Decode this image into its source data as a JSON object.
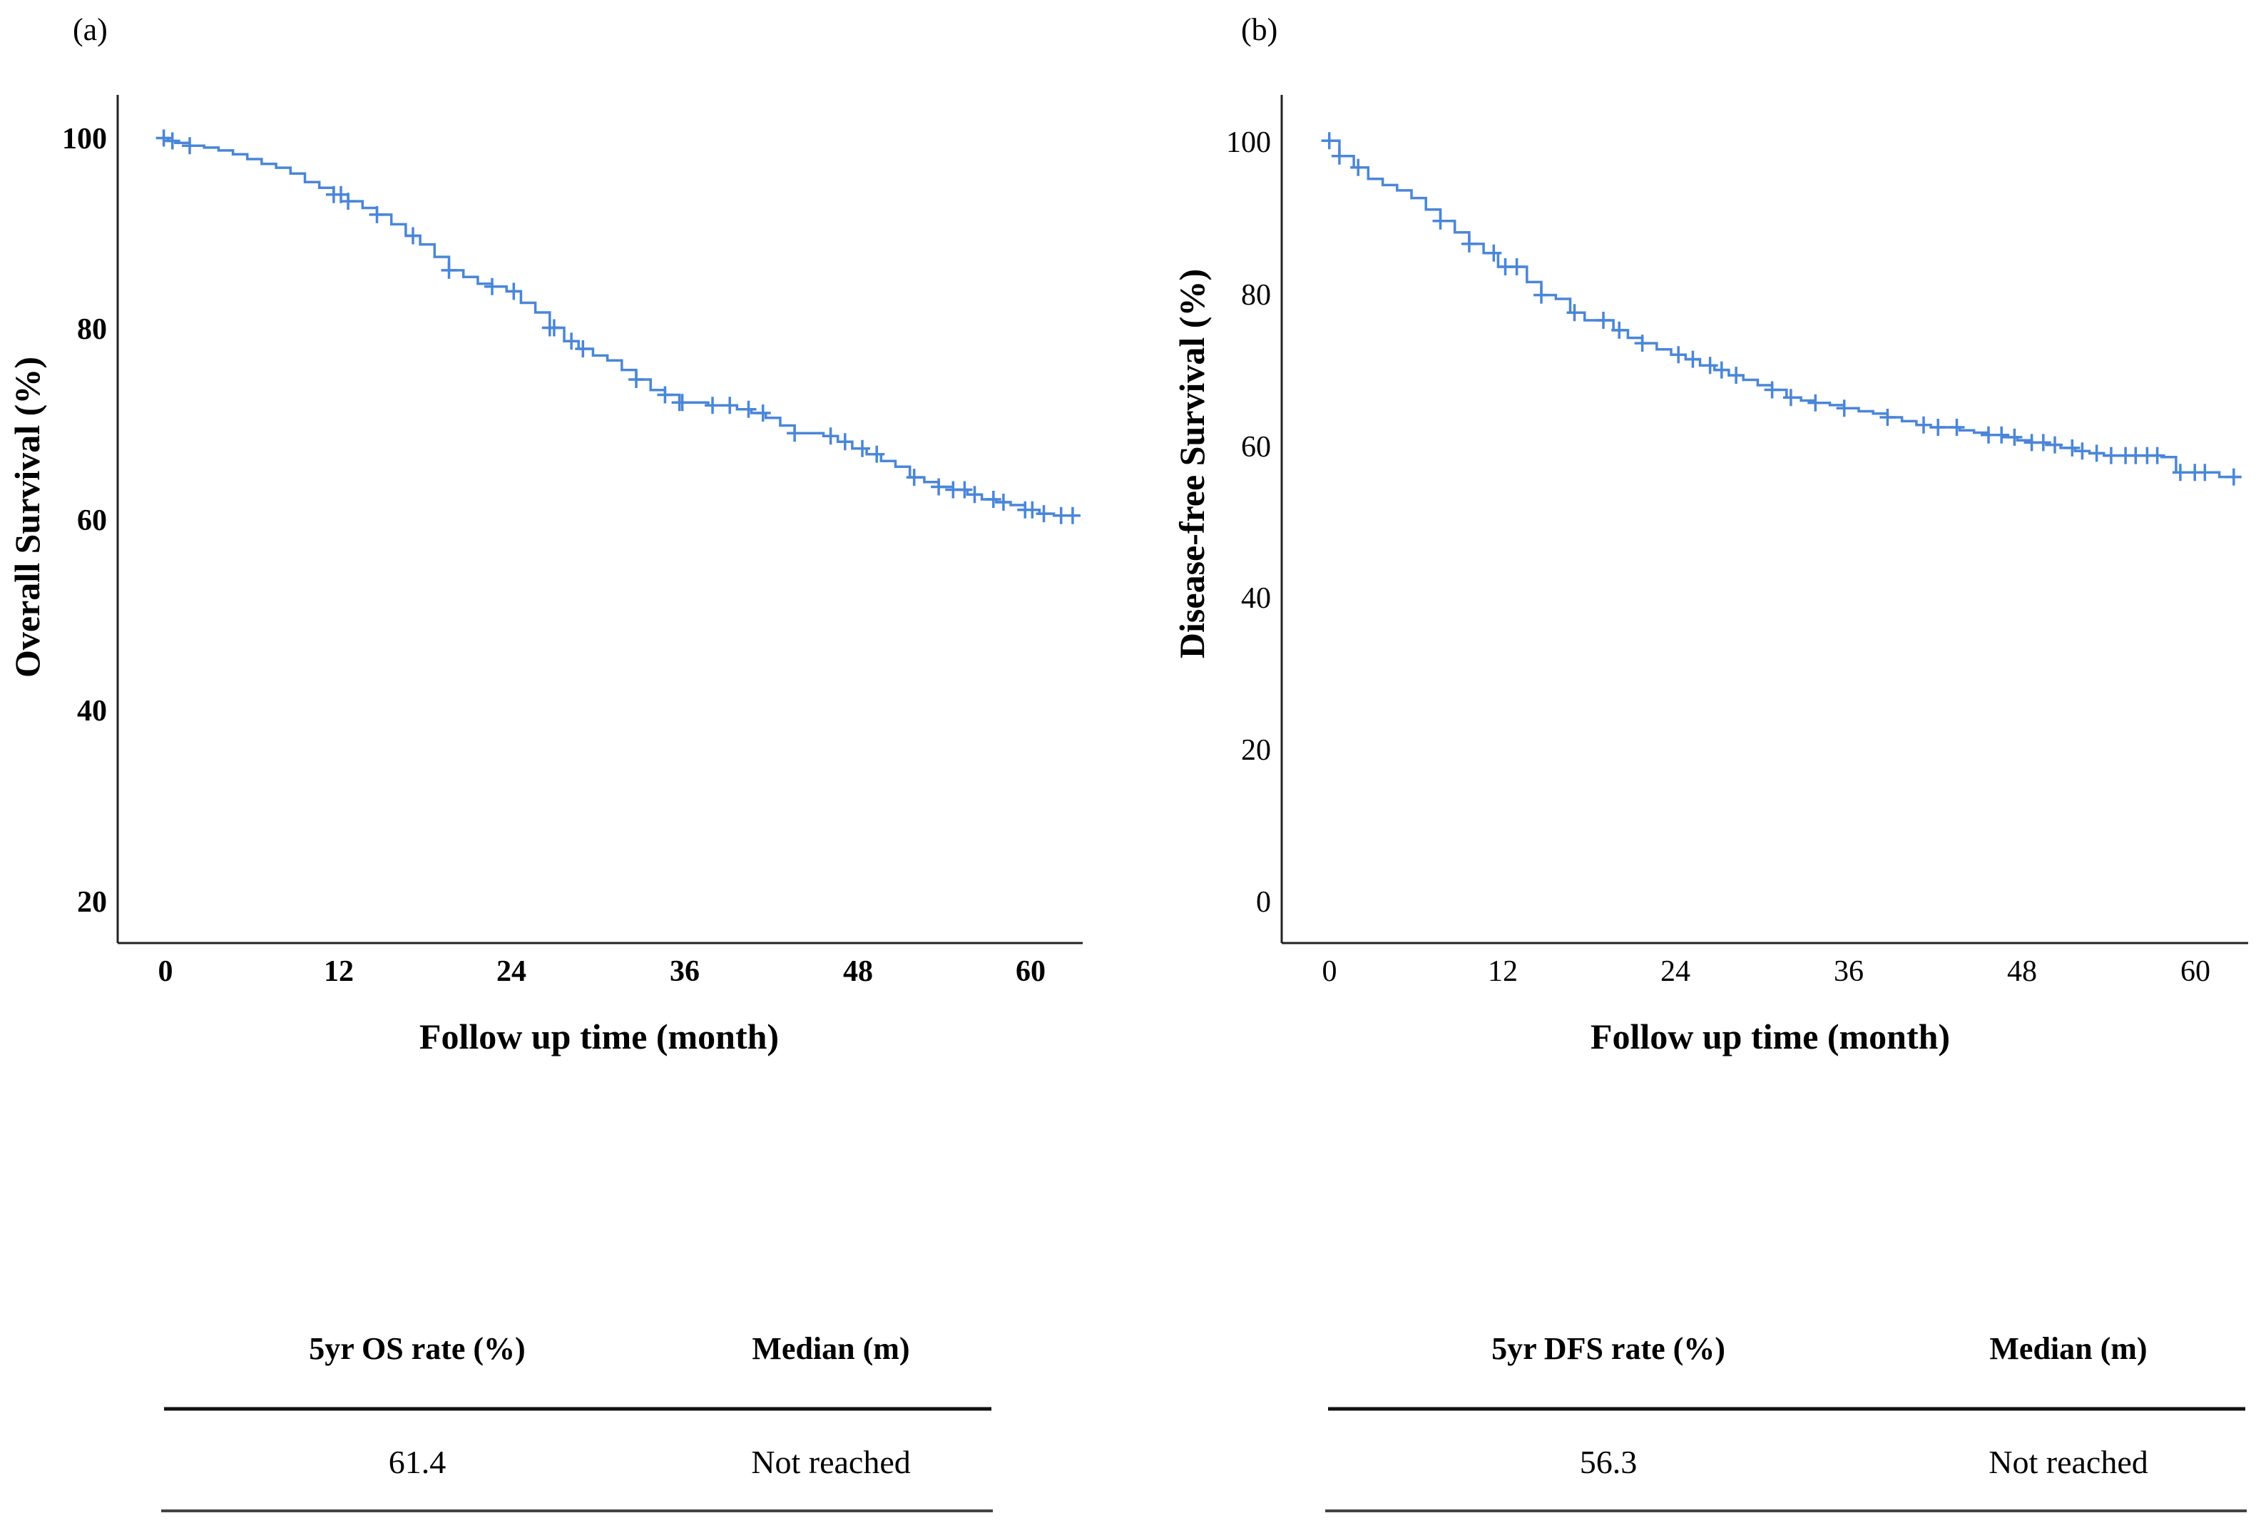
{
  "chart_data": [
    {
      "panel": "(a)",
      "type": "line",
      "subtype": "kaplan-meier step curve with censor marks",
      "xlabel": "Follow up time (month)",
      "ylabel": "Overall Survival (%)",
      "xticks": [
        "0",
        "12",
        "24",
        "36",
        "48",
        "60"
      ],
      "yticks": [
        "20",
        "40",
        "60",
        "80",
        "100"
      ],
      "xlim": [
        -3,
        64
      ],
      "ylim": [
        16,
        104.5
      ],
      "grid": false,
      "color": "#4a86d8",
      "steps": [
        [
          0,
          100
        ],
        [
          0.5,
          99.7
        ],
        [
          1,
          99.5
        ],
        [
          2,
          99.2
        ],
        [
          3,
          99
        ],
        [
          4,
          98.7
        ],
        [
          5,
          98.3
        ],
        [
          6,
          97.8
        ],
        [
          7,
          97.3
        ],
        [
          8,
          96.9
        ],
        [
          9,
          96.3
        ],
        [
          10,
          95.4
        ],
        [
          11,
          94.8
        ],
        [
          12,
          94.1
        ],
        [
          13,
          93.4
        ],
        [
          14,
          92.7
        ],
        [
          15,
          92
        ],
        [
          16,
          91
        ],
        [
          17,
          89.8
        ],
        [
          18,
          88.9
        ],
        [
          19,
          87.6
        ],
        [
          20,
          86.2
        ],
        [
          21,
          85.5
        ],
        [
          22,
          84.8
        ],
        [
          23,
          84.5
        ],
        [
          24,
          84
        ],
        [
          25,
          82.8
        ],
        [
          26,
          81.8
        ],
        [
          27,
          80.2
        ],
        [
          28,
          78.8
        ],
        [
          29,
          78
        ],
        [
          30,
          77.3
        ],
        [
          31,
          76.8
        ],
        [
          32,
          75.8
        ],
        [
          33,
          74.8
        ],
        [
          34,
          73.7
        ],
        [
          35,
          73.2
        ],
        [
          36,
          72.4
        ],
        [
          38,
          72.1
        ],
        [
          40,
          71.7
        ],
        [
          41,
          71.3
        ],
        [
          42,
          70.8
        ],
        [
          43,
          70
        ],
        [
          44,
          69.2
        ],
        [
          46,
          68.9
        ],
        [
          47,
          68.3
        ],
        [
          48,
          67.6
        ],
        [
          49,
          67
        ],
        [
          50,
          66.3
        ],
        [
          51,
          65.7
        ],
        [
          52,
          64.6
        ],
        [
          53,
          64.1
        ],
        [
          54,
          63.6
        ],
        [
          55,
          63.3
        ],
        [
          56,
          62.8
        ],
        [
          57,
          62.3
        ],
        [
          58,
          62
        ],
        [
          59,
          61.7
        ],
        [
          60,
          61.2
        ],
        [
          61,
          60.8
        ],
        [
          62,
          60.6
        ],
        [
          63.5,
          60.6
        ]
      ],
      "censor_times": [
        0.2,
        0.8,
        2,
        12,
        12.5,
        13,
        15,
        17.5,
        20,
        23,
        24.5,
        27,
        27.3,
        28.5,
        29.3,
        33,
        35,
        36,
        36.2,
        38.3,
        39.5,
        40.8,
        41.8,
        44,
        46.5,
        47.5,
        48.7,
        49.7,
        52.3,
        54,
        55,
        55.8,
        56.5,
        57.8,
        58.5,
        60,
        60.5,
        61.3,
        62.5,
        63.3
      ],
      "table": {
        "headers": [
          "5yr OS rate (%)",
          "Median (m)"
        ],
        "values": [
          "61.4",
          "Not reached"
        ]
      }
    },
    {
      "panel": "(b)",
      "type": "line",
      "subtype": "kaplan-meier step curve with censor marks",
      "xlabel": "Follow up time (month)",
      "ylabel": "Disease-free Survival (%)",
      "xticks": [
        "0",
        "12",
        "24",
        "36",
        "48",
        "60"
      ],
      "yticks": [
        "0",
        "20",
        "40",
        "60",
        "80",
        "100"
      ],
      "xlim": [
        -3,
        64
      ],
      "ylim": [
        -5,
        106
      ],
      "grid": false,
      "color": "#4a86d8",
      "steps": [
        [
          0,
          100
        ],
        [
          1,
          98
        ],
        [
          2,
          96.5
        ],
        [
          3,
          95
        ],
        [
          4,
          94.2
        ],
        [
          5,
          93.5
        ],
        [
          6,
          92.5
        ],
        [
          7,
          91
        ],
        [
          8,
          89.5
        ],
        [
          9,
          88
        ],
        [
          10,
          86.5
        ],
        [
          11,
          85.3
        ],
        [
          12,
          83.5
        ],
        [
          14,
          81.5
        ],
        [
          15,
          79.8
        ],
        [
          16,
          79.3
        ],
        [
          17,
          77.5
        ],
        [
          18,
          76.5
        ],
        [
          20,
          75.2
        ],
        [
          21,
          74.2
        ],
        [
          22,
          73.5
        ],
        [
          23,
          72.7
        ],
        [
          24,
          72
        ],
        [
          25,
          71.4
        ],
        [
          26,
          70.6
        ],
        [
          27,
          70
        ],
        [
          28,
          69.3
        ],
        [
          29,
          68.7
        ],
        [
          30,
          68
        ],
        [
          31,
          67.4
        ],
        [
          32,
          66.4
        ],
        [
          33,
          66
        ],
        [
          34,
          65.7
        ],
        [
          35,
          65.4
        ],
        [
          36,
          65
        ],
        [
          37,
          64.6
        ],
        [
          38,
          64.3
        ],
        [
          39,
          63.8
        ],
        [
          40,
          63.3
        ],
        [
          41,
          62.8
        ],
        [
          42,
          62.5
        ],
        [
          44,
          62.1
        ],
        [
          45,
          61.8
        ],
        [
          46,
          61.5
        ],
        [
          47,
          61.2
        ],
        [
          48,
          60.8
        ],
        [
          49,
          60.5
        ],
        [
          50,
          60.2
        ],
        [
          51,
          59.8
        ],
        [
          52,
          59.4
        ],
        [
          53,
          59.1
        ],
        [
          54,
          58.8
        ],
        [
          58,
          58.6
        ],
        [
          59,
          56.6
        ],
        [
          62,
          56
        ],
        [
          63.5,
          56
        ]
      ],
      "censor_times": [
        0.3,
        1,
        2.3,
        8,
        10,
        11.7,
        12.5,
        13.3,
        15,
        17.3,
        19.3,
        20.4,
        22,
        24.5,
        25.5,
        26.7,
        27.5,
        28.5,
        31,
        32.3,
        34,
        36,
        39,
        41.5,
        42.5,
        43.8,
        46,
        46.9,
        47.8,
        49,
        49.8,
        50.6,
        51.8,
        52.5,
        53.5,
        54.5,
        55.5,
        56.2,
        57,
        57.7,
        59.3,
        60.3,
        61,
        63
      ]
    }
  ],
  "tables": [
    {
      "headers": [
        "5yr OS rate (%)",
        "Median (m)"
      ],
      "values": [
        "61.4",
        "Not reached"
      ]
    },
    {
      "headers": [
        "5yr DFS rate (%)",
        "Median (m)"
      ],
      "values": [
        "56.3",
        "Not reached"
      ]
    }
  ]
}
